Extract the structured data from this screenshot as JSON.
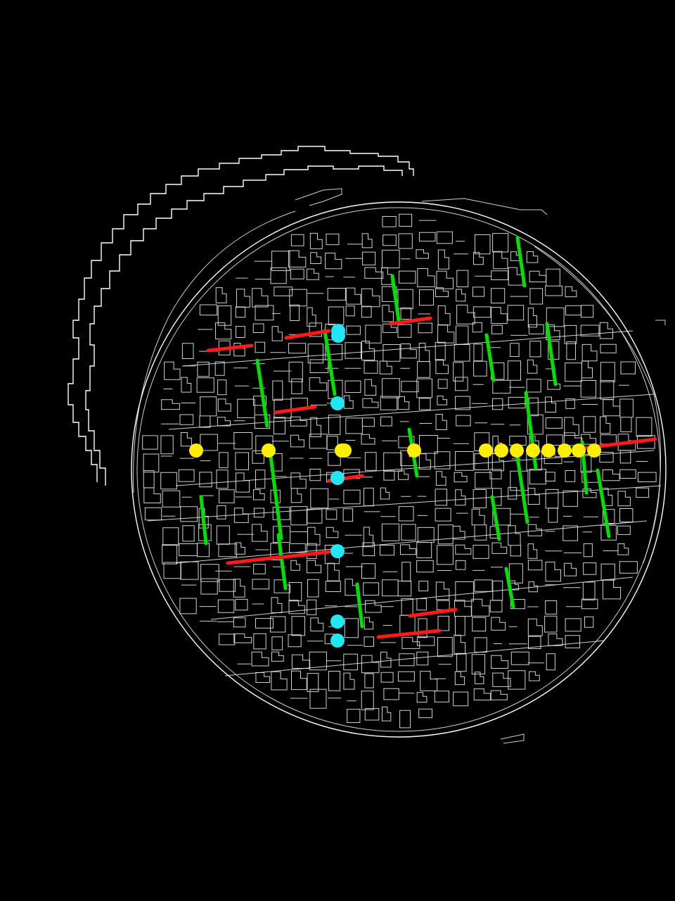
{
  "image": {
    "description_type": "edge-detection",
    "background_color": "#000000",
    "edge_color": "#ffffff"
  },
  "overlay": {
    "colors": {
      "green": "#00e000",
      "red": "#ff1a1a",
      "yellow": "#ffee00",
      "cyan": "#22e6f2"
    },
    "counts": {
      "green_segments": 21,
      "red_segments": 10,
      "yellow_dots": 14,
      "cyan_dots": 7
    }
  }
}
